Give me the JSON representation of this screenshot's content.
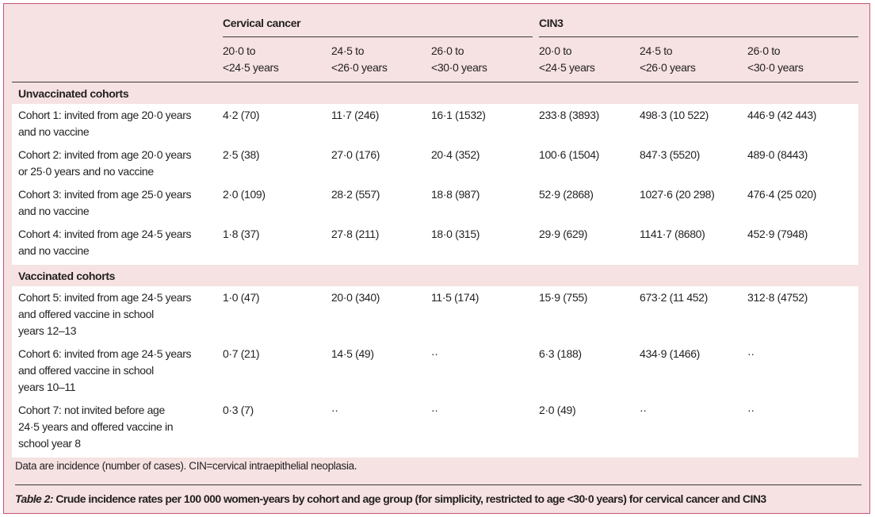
{
  "table": {
    "groups": [
      "Cervical cancer",
      "CIN3"
    ],
    "age_columns": [
      [
        "20·0 to",
        "<24·5 years"
      ],
      [
        "24·5 to",
        "<26·0 years"
      ],
      [
        "26·0 to",
        "<30·0 years"
      ],
      [
        "20·0 to",
        "<24·5 years"
      ],
      [
        "24·5 to",
        "<26·0 years"
      ],
      [
        "26·0 to",
        "<30·0 years"
      ]
    ],
    "sections": [
      {
        "title": "Unvaccinated cohorts",
        "rows": [
          {
            "label": [
              "Cohort 1: invited from age 20·0 years",
              "and no vaccine"
            ],
            "values": [
              "4·2 (70)",
              "11·7 (246)",
              "16·1 (1532)",
              "233·8 (3893)",
              "498·3 (10 522)",
              "446·9 (42 443)"
            ]
          },
          {
            "label": [
              "Cohort 2: invited from age 20·0 years",
              "or 25·0 years and no vaccine"
            ],
            "values": [
              "2·5 (38)",
              "27·0 (176)",
              "20·4 (352)",
              "100·6 (1504)",
              "847·3 (5520)",
              "489·0 (8443)"
            ]
          },
          {
            "label": [
              "Cohort 3: invited from age 25·0 years",
              "and no vaccine"
            ],
            "values": [
              "2·0 (109)",
              "28·2 (557)",
              "18·8 (987)",
              "52·9 (2868)",
              "1027·6 (20 298)",
              "476·4 (25 020)"
            ]
          },
          {
            "label": [
              "Cohort 4: invited from age 24·5 years",
              "and no vaccine"
            ],
            "values": [
              "1·8 (37)",
              "27·8 (211)",
              "18·0 (315)",
              "29·9 (629)",
              "1141·7 (8680)",
              "452·9 (7948)"
            ]
          }
        ]
      },
      {
        "title": "Vaccinated cohorts",
        "rows": [
          {
            "label": [
              "Cohort 5: invited from age 24·5 years",
              "and offered vaccine in school",
              "years 12–13"
            ],
            "values": [
              "1·0 (47)",
              "20·0 (340)",
              "11·5 (174)",
              "15·9 (755)",
              "673·2 (11 452)",
              "312·8 (4752)"
            ]
          },
          {
            "label": [
              "Cohort 6: invited from age 24·5 years",
              "and offered vaccine in school",
              "years 10–11"
            ],
            "values": [
              "0·7 (21)",
              "14·5 (49)",
              "··",
              "6·3 (188)",
              "434·9 (1466)",
              "··"
            ]
          },
          {
            "label": [
              "Cohort 7: not invited before age",
              "24·5 years and offered vaccine in",
              "school year 8"
            ],
            "values": [
              "0·3 (7)",
              "··",
              "··",
              "2·0 (49)",
              "··",
              "··"
            ]
          }
        ]
      }
    ]
  },
  "footnote": "Data are incidence (number of cases). CIN=cervical intraepithelial neoplasia.",
  "caption": {
    "label": "Table 2:",
    "text": " Crude incidence rates per 100 000 women-years by cohort and age group (for simplicity, restricted to age <30·0 years) for cervical cancer and CIN3"
  },
  "colors": {
    "background": "#f6e2e2",
    "border": "#c8557a",
    "row_background": "#ffffff"
  }
}
